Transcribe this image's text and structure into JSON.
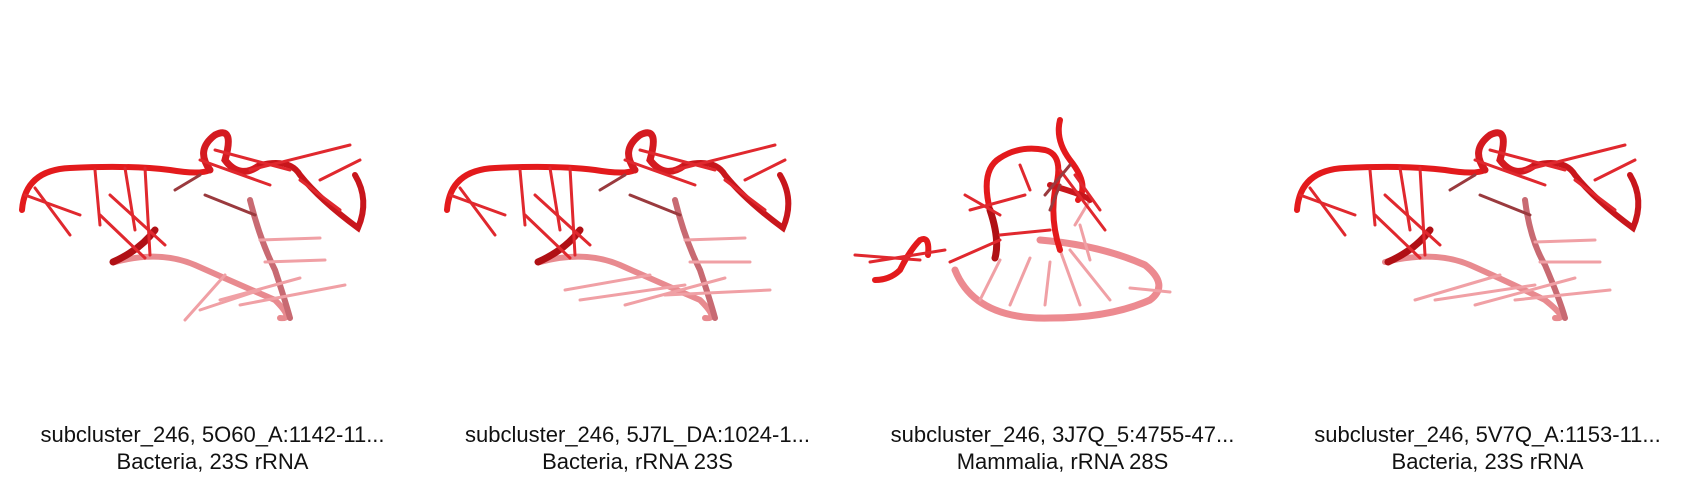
{
  "structures": [
    {
      "line1": "subcluster_246, 5O60_A:1142-11...",
      "line2": "Bacteria, 23S rRNA"
    },
    {
      "line1": "subcluster_246, 5J7L_DA:1024-1...",
      "line2": "Bacteria, rRNA 23S"
    },
    {
      "line1": "subcluster_246, 3J7Q_5:4755-47...",
      "line2": "Mammalia, rRNA 28S"
    },
    {
      "line1": "subcluster_246, 5V7Q_A:1153-11...",
      "line2": "Bacteria, 23S rRNA"
    }
  ],
  "colors": {
    "backbone_front": "#e31a1c",
    "backbone_mid": "#d03a40",
    "backbone_back": "#f08080",
    "dark": "#8b0000"
  }
}
